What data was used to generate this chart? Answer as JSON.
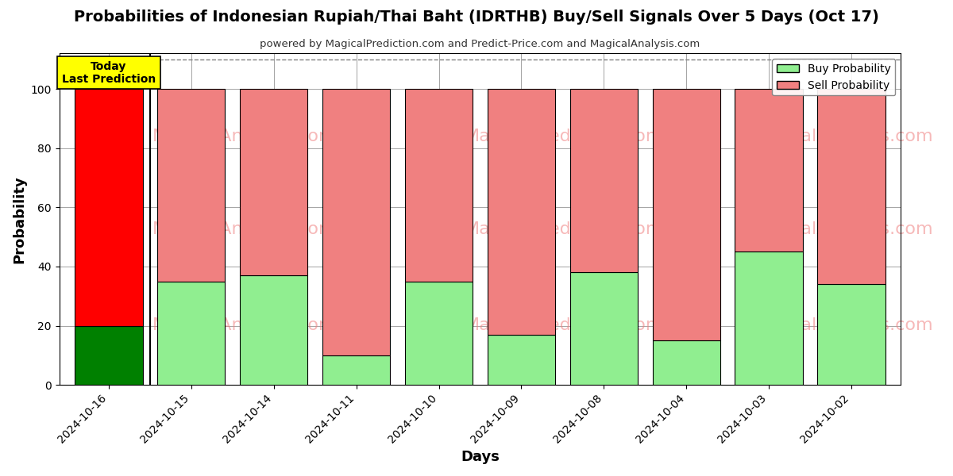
{
  "title": "Probabilities of Indonesian Rupiah/Thai Baht (IDRTHB) Buy/Sell Signals Over 5 Days (Oct 17)",
  "subtitle": "powered by MagicalPrediction.com and Predict-Price.com and MagicalAnalysis.com",
  "xlabel": "Days",
  "ylabel": "Probability",
  "categories": [
    "2024-10-16",
    "2024-10-15",
    "2024-10-14",
    "2024-10-11",
    "2024-10-10",
    "2024-10-09",
    "2024-10-08",
    "2024-10-04",
    "2024-10-03",
    "2024-10-02"
  ],
  "buy_values": [
    20,
    35,
    37,
    10,
    35,
    17,
    38,
    15,
    45,
    34
  ],
  "sell_values": [
    80,
    65,
    63,
    90,
    65,
    83,
    62,
    85,
    55,
    66
  ],
  "today_bar_index": 0,
  "buy_color_today": "#008000",
  "sell_color_today": "#ff0000",
  "buy_color_other": "#90EE90",
  "sell_color_other": "#F08080",
  "today_label_bg": "#ffff00",
  "today_label_text": "Today\nLast Prediction",
  "legend_buy_label": "Buy Probability",
  "legend_sell_label": "Sell Probability",
  "ylim": [
    0,
    112
  ],
  "yticks": [
    0,
    20,
    40,
    60,
    80,
    100
  ],
  "dashed_line_y": 110,
  "background_color": "#ffffff",
  "bar_edge_color": "#000000",
  "bar_edge_width": 0.8,
  "figsize": [
    12,
    6
  ],
  "dpi": 100
}
